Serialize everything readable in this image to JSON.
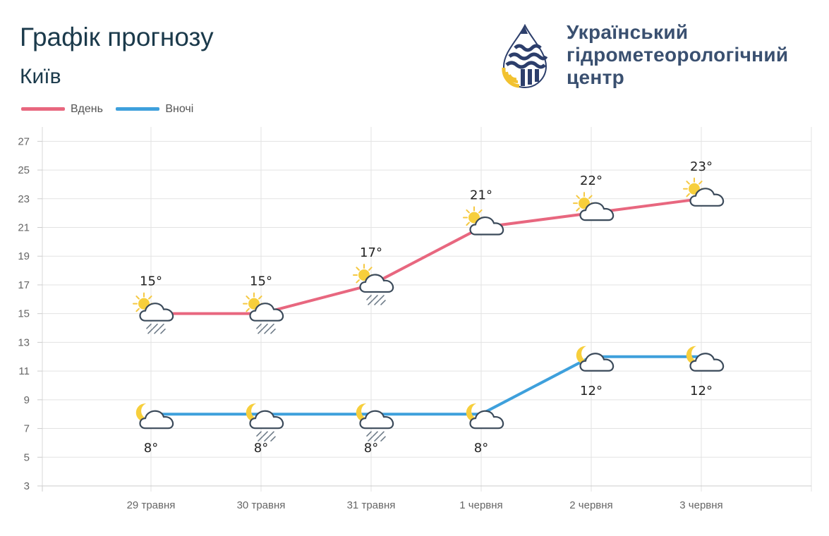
{
  "header": {
    "title": "Графік прогнозу",
    "city": "Київ"
  },
  "logo": {
    "line1": "Український",
    "line2": "гідрометеорологічний",
    "line3": "центр",
    "colors": {
      "blue": "#2c3e6b",
      "yellow": "#f2c230"
    }
  },
  "legend": [
    {
      "label": "Вдень",
      "color": "#e8677f"
    },
    {
      "label": "Вночі",
      "color": "#3ea0dc"
    }
  ],
  "chart_data": {
    "type": "line",
    "categories": [
      "29 травня",
      "30 травня",
      "31 травня",
      "1 червня",
      "2 червня",
      "3 червня"
    ],
    "series": [
      {
        "name": "Вдень",
        "color": "#e8677f",
        "values": [
          15,
          15,
          17,
          21,
          22,
          23
        ],
        "labels": [
          "15°",
          "15°",
          "17°",
          "21°",
          "22°",
          "23°"
        ],
        "icons": [
          "sun-cloud-rain-icon",
          "sun-cloud-rain-icon",
          "sun-cloud-rain-icon",
          "sun-cloud-icon",
          "sun-cloud-icon",
          "sun-cloud-icon"
        ]
      },
      {
        "name": "Вночі",
        "color": "#3ea0dc",
        "values": [
          8,
          8,
          8,
          8,
          12,
          12
        ],
        "labels": [
          "8°",
          "8°",
          "8°",
          "8°",
          "12°",
          "12°"
        ],
        "icons": [
          "moon-cloud-icon",
          "moon-cloud-rain-icon",
          "moon-cloud-rain-icon",
          "moon-cloud-icon",
          "moon-cloud-icon",
          "moon-cloud-icon"
        ]
      }
    ],
    "yticks": [
      3,
      5,
      7,
      9,
      11,
      13,
      15,
      17,
      19,
      21,
      23,
      25,
      27
    ],
    "ylim": [
      3,
      28
    ],
    "grid": true,
    "legend_position": "top-left"
  }
}
